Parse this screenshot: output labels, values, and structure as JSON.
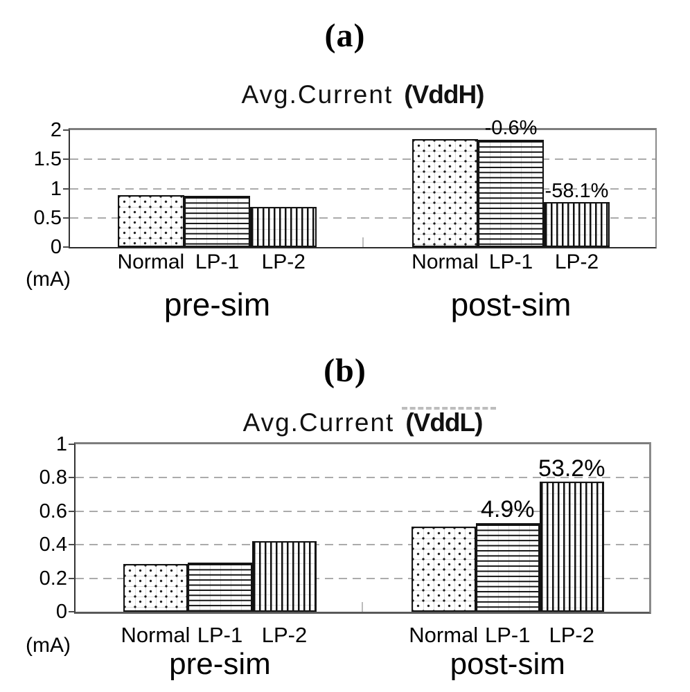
{
  "figure": {
    "panel_a_label": "(a)",
    "panel_b_label": "(b)"
  },
  "chart_data": [
    {
      "id": "vddh",
      "type": "bar",
      "title": "Avg.Current (VddH)",
      "title_main": "Avg.Current",
      "title_suffix": "(VddH)",
      "unit_label": "(mA)",
      "ylabel": "(mA)",
      "ylim": [
        0,
        2
      ],
      "yticks": [
        0,
        0.5,
        1,
        1.5,
        2
      ],
      "ytick_labels": [
        "0",
        "0.5",
        "1",
        "1.5",
        "2"
      ],
      "grid": "horizontal-dashed",
      "legend": "none",
      "categories": [
        "Normal",
        "LP-1",
        "LP-2"
      ],
      "patterns": [
        "dots",
        "horizontal-lines",
        "vertical-lines"
      ],
      "groups": [
        {
          "label": "pre-sim",
          "values": [
            0.89,
            0.88,
            0.69
          ],
          "annotations": [
            "",
            "",
            ""
          ]
        },
        {
          "label": "post-sim",
          "values": [
            1.85,
            1.84,
            0.77
          ],
          "annotations": [
            "",
            "-0.6%",
            "-58.1%"
          ]
        }
      ]
    },
    {
      "id": "vddl",
      "type": "bar",
      "title": "Avg.Current (VddL)",
      "title_main": "Avg.Current",
      "title_suffix": "(VddL)",
      "unit_label": "(mA)",
      "ylabel": "(mA)",
      "ylim": [
        0,
        1
      ],
      "yticks": [
        0,
        0.2,
        0.4,
        0.6,
        0.8,
        1
      ],
      "ytick_labels": [
        "0",
        "0.2",
        "0.4",
        "0.6",
        "0.8",
        "1"
      ],
      "grid": "horizontal-dashed",
      "legend": "none",
      "categories": [
        "Normal",
        "LP-1",
        "LP-2"
      ],
      "patterns": [
        "dots",
        "horizontal-lines",
        "vertical-lines"
      ],
      "groups": [
        {
          "label": "pre-sim",
          "values": [
            0.285,
            0.295,
            0.42
          ],
          "annotations": [
            "",
            "",
            ""
          ]
        },
        {
          "label": "post-sim",
          "values": [
            0.51,
            0.53,
            0.775
          ],
          "annotations": [
            "",
            "4.9%",
            "53.2%"
          ]
        }
      ]
    }
  ],
  "colors": {
    "bar_outline": "#141414",
    "grid_line": "#ababab",
    "frame_gray": "#7d7d7d",
    "axis_dark": "#333333",
    "text": "#000000",
    "background": "#ffffff"
  }
}
